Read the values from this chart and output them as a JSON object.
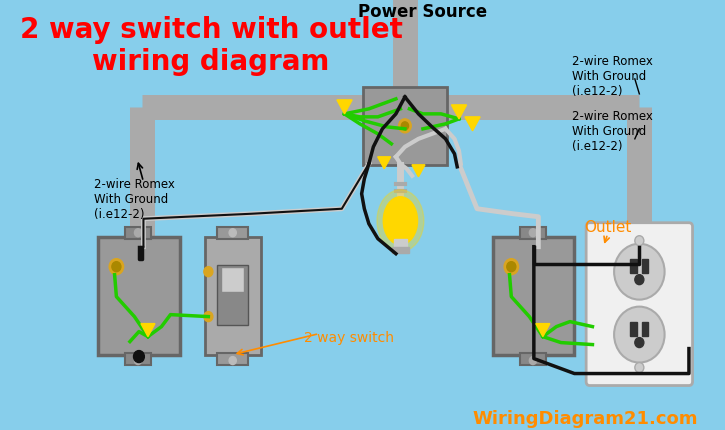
{
  "background_color": "#87CEEB",
  "title_line1": "2 way switch with outlet",
  "title_line2": "wiring diagram",
  "title_color": "#FF0000",
  "title_fontsize": 20,
  "power_source_label": "Power Source",
  "label_romex_left": "2-wire Romex\nWith Ground\n(i.e12-2)",
  "label_romex_right1": "2-wire Romex\nWith Ground\n(i.e12-2)",
  "label_romex_right2": "2-wire Romex\nWith Ground\n(i.e12-2)",
  "label_switch": "2 way switch",
  "label_outlet": "Outlet",
  "label_outlet_color": "#FF8C00",
  "label_switch_color": "#FF8C00",
  "watermark": "WiringDiagram21.com",
  "watermark_color": "#FF8C00",
  "wire_green": "#22CC00",
  "wire_black": "#111111",
  "wire_white": "#CCCCCC",
  "conduit_color": "#AAAAAA",
  "box_color": "#888888",
  "outlet_body_color": "#F0F0F0",
  "bulb_color": "#FFD700",
  "gold_color": "#DAA520",
  "wire_nut_color": "#FFD700"
}
